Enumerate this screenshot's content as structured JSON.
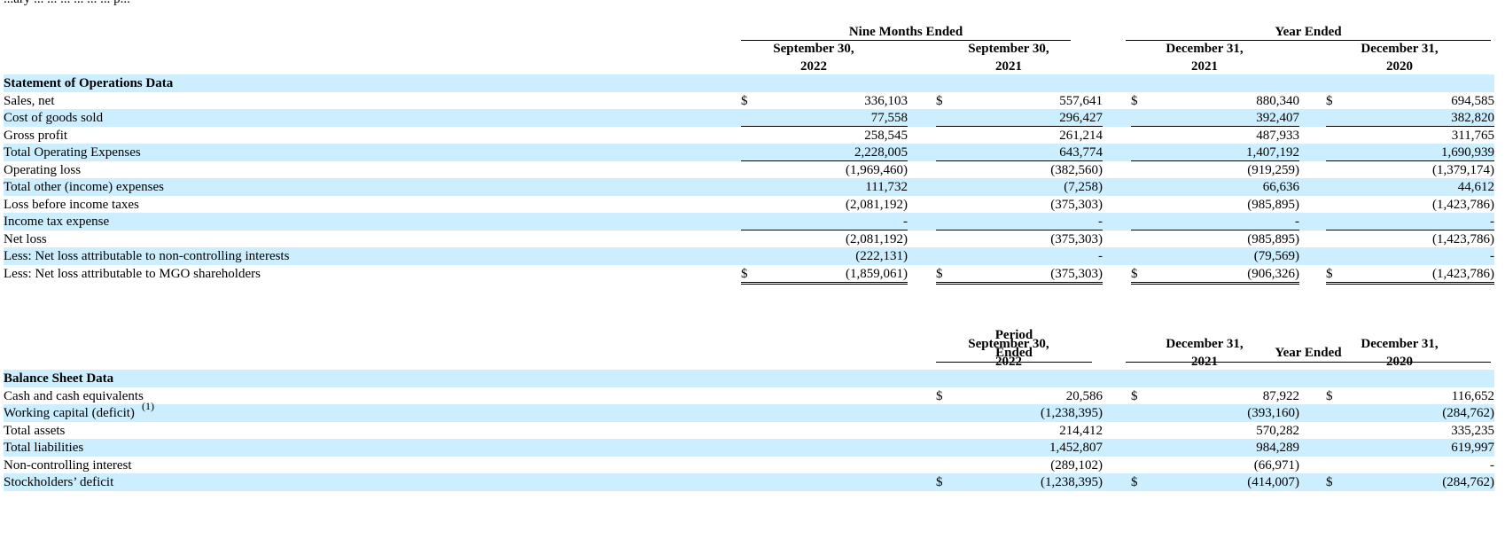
{
  "top_text": "...ary ... ... ... ... ... ... p...",
  "operations": {
    "headers": {
      "group1": "Nine Months Ended",
      "group2": "Year Ended",
      "cols": [
        {
          "line1": "September 30,",
          "line2": "2022"
        },
        {
          "line1": "September 30,",
          "line2": "2021"
        },
        {
          "line1": "December 31,",
          "line2": "2021"
        },
        {
          "line1": "December 31,",
          "line2": "2020"
        }
      ]
    },
    "section_title": "Statement of Operations Data",
    "currency_symbol": "$",
    "rows": [
      {
        "label": "Sales, net",
        "values": [
          "336,103",
          "557,641",
          "880,340",
          "694,585"
        ]
      },
      {
        "label": "Cost of goods sold",
        "values": [
          "77,558",
          "296,427",
          "392,407",
          "382,820"
        ]
      },
      {
        "label": "Gross profit",
        "values": [
          "258,545",
          "261,214",
          "487,933",
          "311,765"
        ]
      },
      {
        "label": "Total Operating Expenses",
        "values": [
          "2,228,005",
          "643,774",
          "1,407,192",
          "1,690,939"
        ]
      },
      {
        "label": "Operating loss",
        "values": [
          "(1,969,460)",
          "(382,560)",
          "(919,259)",
          "(1,379,174)"
        ]
      },
      {
        "label": "Total other (income) expenses",
        "values": [
          "111,732",
          "(7,258)",
          "66,636",
          "44,612"
        ]
      },
      {
        "label": "Loss before income taxes",
        "values": [
          "(2,081,192)",
          "(375,303)",
          "(985,895)",
          "(1,423,786)"
        ]
      },
      {
        "label": "Income tax expense",
        "values": [
          "-",
          "-",
          "-",
          "-"
        ]
      },
      {
        "label": "Net loss",
        "values": [
          "(2,081,192)",
          "(375,303)",
          "(985,895)",
          "(1,423,786)"
        ]
      },
      {
        "label": "Less: Net loss attributable to non-controlling interests",
        "values": [
          "(222,131)",
          "-",
          "(79,569)",
          "-"
        ]
      },
      {
        "label": "Less: Net loss attributable to MGO shareholders",
        "values": [
          "(1,859,061)",
          "(375,303)",
          "(906,326)",
          "(1,423,786)"
        ]
      }
    ]
  },
  "balance": {
    "headers": {
      "group1_line1": "Period",
      "group1_line2": "Ended",
      "group2": "Year Ended",
      "cols": [
        {
          "line1": "September 30,",
          "line2": "2022"
        },
        {
          "line1": "December 31,",
          "line2": "2021"
        },
        {
          "line1": "December 31,",
          "line2": "2020"
        }
      ]
    },
    "section_title": "Balance Sheet Data",
    "currency_symbol": "$",
    "footnote_mark": "(1)",
    "rows": [
      {
        "label": "Cash and cash equivalents",
        "values": [
          "20,586",
          "87,922",
          "116,652"
        ]
      },
      {
        "label": "Working capital (deficit)",
        "values": [
          "(1,238,395)",
          "(393,160)",
          "(284,762)"
        ]
      },
      {
        "label": "Total assets",
        "values": [
          "214,412",
          "570,282",
          "335,235"
        ]
      },
      {
        "label": "Total liabilities",
        "values": [
          "1,452,807",
          "984,289",
          "619,997"
        ]
      },
      {
        "label": "Non-controlling interest",
        "values": [
          "(289,102)",
          "(66,971)",
          "-"
        ]
      },
      {
        "label": "Stockholders’ deficit",
        "values": [
          "(1,238,395)",
          "(414,007)",
          "(284,762)"
        ]
      }
    ]
  }
}
